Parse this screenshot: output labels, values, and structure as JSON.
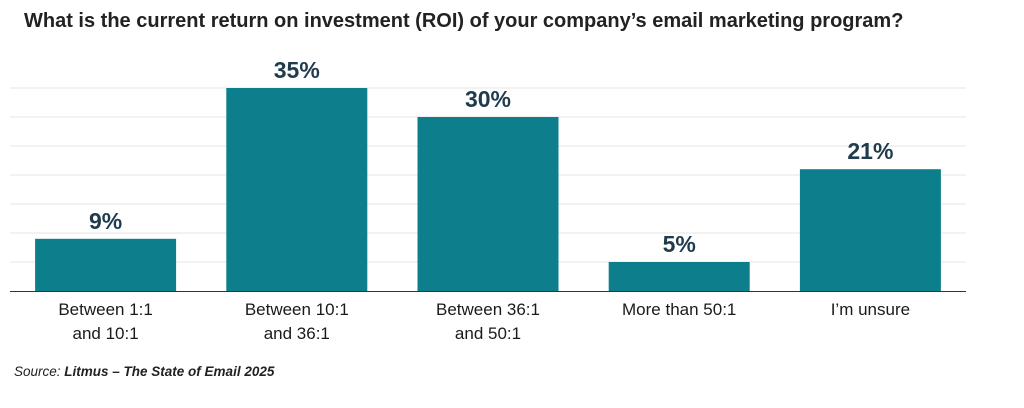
{
  "chart_data": {
    "type": "bar",
    "title": "What is the current return on investment (ROI) of your company’s email marketing program?",
    "categories": [
      [
        "Between 1:1",
        "and 10:1"
      ],
      [
        "Between 10:1",
        "and 36:1"
      ],
      [
        "Between 36:1",
        "and 50:1"
      ],
      [
        "More than 50:1"
      ],
      [
        "I’m unsure"
      ]
    ],
    "values": [
      9,
      35,
      30,
      5,
      21
    ],
    "value_labels": [
      "9%",
      "35%",
      "30%",
      "5%",
      "21%"
    ],
    "ylim": [
      0,
      35
    ],
    "grid": true,
    "bar_color": "#0d7f8c",
    "value_label_color": "#1f3b4d",
    "grid_color": "#e6e6e6"
  },
  "source": {
    "prefix": "Source: ",
    "text": "Litmus – The State of Email 2025"
  }
}
